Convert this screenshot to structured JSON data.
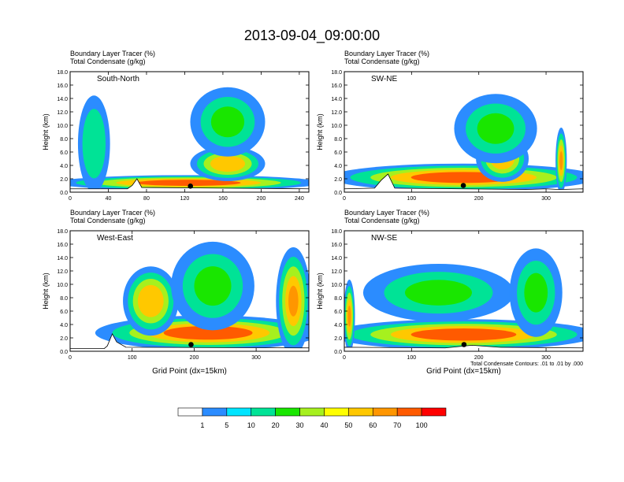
{
  "figure": {
    "title": "2013-09-04_09:00:00",
    "panel_label_line1": "Boundary Layer Tracer   (%)",
    "panel_label_line2": "Total Condensate   (g/kg)",
    "contour_note": "Total Condensate Contours: .01 to .01 by .000"
  },
  "colorbar": {
    "colors": [
      "#ffffff",
      "#2b8cff",
      "#00e5ff",
      "#00e396",
      "#19e600",
      "#a6f01e",
      "#ffff00",
      "#ffc800",
      "#ff9600",
      "#ff5a00",
      "#ff0000"
    ],
    "labels": [
      "1",
      "5",
      "10",
      "20",
      "30",
      "40",
      "50",
      "60",
      "70",
      "100"
    ]
  },
  "chart_data": [
    {
      "type": "heatmap",
      "title": "South-North",
      "xlabel": "",
      "ylabel": "Height (km)",
      "xlim": [
        0,
        250
      ],
      "ylim": [
        0,
        18
      ],
      "xticks": [
        "0",
        "40",
        "80",
        "120",
        "160",
        "200",
        "240"
      ],
      "yticks": [
        "0.0",
        "2.0",
        "4.0",
        "6.0",
        "8.0",
        "10.0",
        "12.0",
        "14.0",
        "16.0",
        "18.0"
      ],
      "surface_km": [
        [
          0,
          0.5
        ],
        [
          60,
          0.5
        ],
        [
          65,
          1.0
        ],
        [
          70,
          2.0
        ],
        [
          75,
          0.7
        ],
        [
          250,
          0.5
        ]
      ],
      "marker_x": 126,
      "marker_y_km": 0.9,
      "regions": [
        {
          "value_pct": 80,
          "x": [
            0,
            248
          ],
          "z": [
            0.4,
            2.4
          ]
        },
        {
          "value_pct": 55,
          "x": [
            130,
            200
          ],
          "z": [
            2.0,
            6.5
          ]
        },
        {
          "value_pct": 25,
          "x": [
            130,
            200
          ],
          "z": [
            6.0,
            15.0
          ]
        },
        {
          "value_pct": 15,
          "x": [
            10,
            40
          ],
          "z": [
            1.0,
            13.5
          ]
        }
      ]
    },
    {
      "type": "heatmap",
      "title": "SW-NE",
      "xlabel": "",
      "ylabel": "Height (km)",
      "xlim": [
        0,
        355
      ],
      "ylim": [
        0,
        18
      ],
      "xticks": [
        "0",
        "100",
        "200",
        "300"
      ],
      "yticks": [
        "0.0",
        "2.0",
        "4.0",
        "6.0",
        "8.0",
        "10.0",
        "12.0",
        "14.0",
        "16.0",
        "18.0"
      ],
      "surface_km": [
        [
          0,
          0.5
        ],
        [
          45,
          0.6
        ],
        [
          55,
          1.8
        ],
        [
          65,
          2.7
        ],
        [
          75,
          0.6
        ],
        [
          270,
          0.4
        ],
        [
          300,
          0.5
        ],
        [
          320,
          0.4
        ],
        [
          355,
          0.5
        ]
      ],
      "marker_x": 177,
      "marker_y_km": 1.0,
      "regions": [
        {
          "value_pct": 80,
          "x": [
            0,
            355
          ],
          "z": [
            0.4,
            4.0
          ]
        },
        {
          "value_pct": 55,
          "x": [
            200,
            270
          ],
          "z": [
            2.0,
            8.0
          ]
        },
        {
          "value_pct": 25,
          "x": [
            170,
            280
          ],
          "z": [
            5.0,
            14.0
          ]
        },
        {
          "value_pct": 60,
          "x": [
            315,
            330
          ],
          "z": [
            0.4,
            9.0
          ]
        }
      ]
    },
    {
      "type": "heatmap",
      "title": "West-East",
      "xlabel": "Grid Point (dx=15km)",
      "ylabel": "Height (km)",
      "xlim": [
        0,
        385
      ],
      "ylim": [
        0,
        18
      ],
      "xticks": [
        "0",
        "100",
        "200",
        "300"
      ],
      "yticks": [
        "0.0",
        "2.0",
        "4.0",
        "6.0",
        "8.0",
        "10.0",
        "12.0",
        "14.0",
        "16.0",
        "18.0"
      ],
      "surface_km": [
        [
          0,
          0.4
        ],
        [
          55,
          0.4
        ],
        [
          60,
          0.8
        ],
        [
          68,
          2.6
        ],
        [
          75,
          1.4
        ],
        [
          90,
          0.6
        ],
        [
          385,
          0.5
        ]
      ],
      "marker_x": 195,
      "marker_y_km": 1.0,
      "regions": [
        {
          "value_pct": 80,
          "x": [
            60,
            385
          ],
          "z": [
            0.5,
            5.0
          ]
        },
        {
          "value_pct": 50,
          "x": [
            90,
            170
          ],
          "z": [
            3.0,
            12.0
          ]
        },
        {
          "value_pct": 25,
          "x": [
            170,
            290
          ],
          "z": [
            4.0,
            15.5
          ]
        },
        {
          "value_pct": 60,
          "x": [
            335,
            385
          ],
          "z": [
            0.5,
            14.5
          ]
        }
      ]
    },
    {
      "type": "heatmap",
      "title": "NW-SE",
      "xlabel": "Grid Point (dx=15km)",
      "ylabel": "Height (km)",
      "xlim": [
        0,
        355
      ],
      "ylim": [
        0,
        18
      ],
      "xticks": [
        "0",
        "100",
        "200",
        "300"
      ],
      "yticks": [
        "0.0",
        "2.0",
        "4.0",
        "6.0",
        "8.0",
        "10.0",
        "12.0",
        "14.0",
        "16.0",
        "18.0"
      ],
      "surface_km": [
        [
          0,
          0.6
        ],
        [
          150,
          0.5
        ],
        [
          190,
          0.9
        ],
        [
          230,
          0.6
        ],
        [
          355,
          0.5
        ]
      ],
      "marker_x": 178,
      "marker_y_km": 1.0,
      "regions": [
        {
          "value_pct": 80,
          "x": [
            0,
            355
          ],
          "z": [
            0.5,
            4.5
          ]
        },
        {
          "value_pct": 60,
          "x": [
            0,
            15
          ],
          "z": [
            0.5,
            10.0
          ]
        },
        {
          "value_pct": 25,
          "x": [
            40,
            240
          ],
          "z": [
            5.0,
            12.5
          ]
        },
        {
          "value_pct": 20,
          "x": [
            250,
            320
          ],
          "z": [
            3.0,
            14.5
          ]
        }
      ]
    }
  ]
}
